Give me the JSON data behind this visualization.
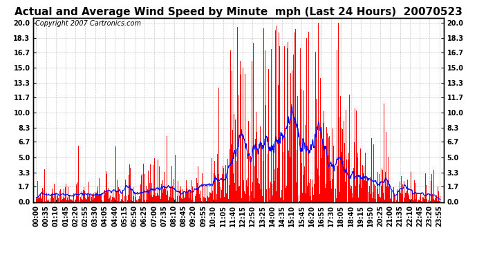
{
  "title": "Actual and Average Wind Speed by Minute  mph (Last 24 Hours)  20070523",
  "copyright": "Copyright 2007 Cartronics.com",
  "yticks": [
    0.0,
    1.7,
    3.3,
    5.0,
    6.7,
    8.3,
    10.0,
    11.7,
    13.3,
    15.0,
    16.7,
    18.3,
    20.0
  ],
  "ylim": [
    0.0,
    20.5
  ],
  "bar_color": "#FF0000",
  "line_color": "#0000FF",
  "background_color": "#FFFFFF",
  "grid_color": "#BBBBBB",
  "title_fontsize": 11,
  "copyright_fontsize": 7,
  "tick_fontsize": 7,
  "bar_width": 1.0,
  "seed": 123,
  "n_minutes": 1440
}
